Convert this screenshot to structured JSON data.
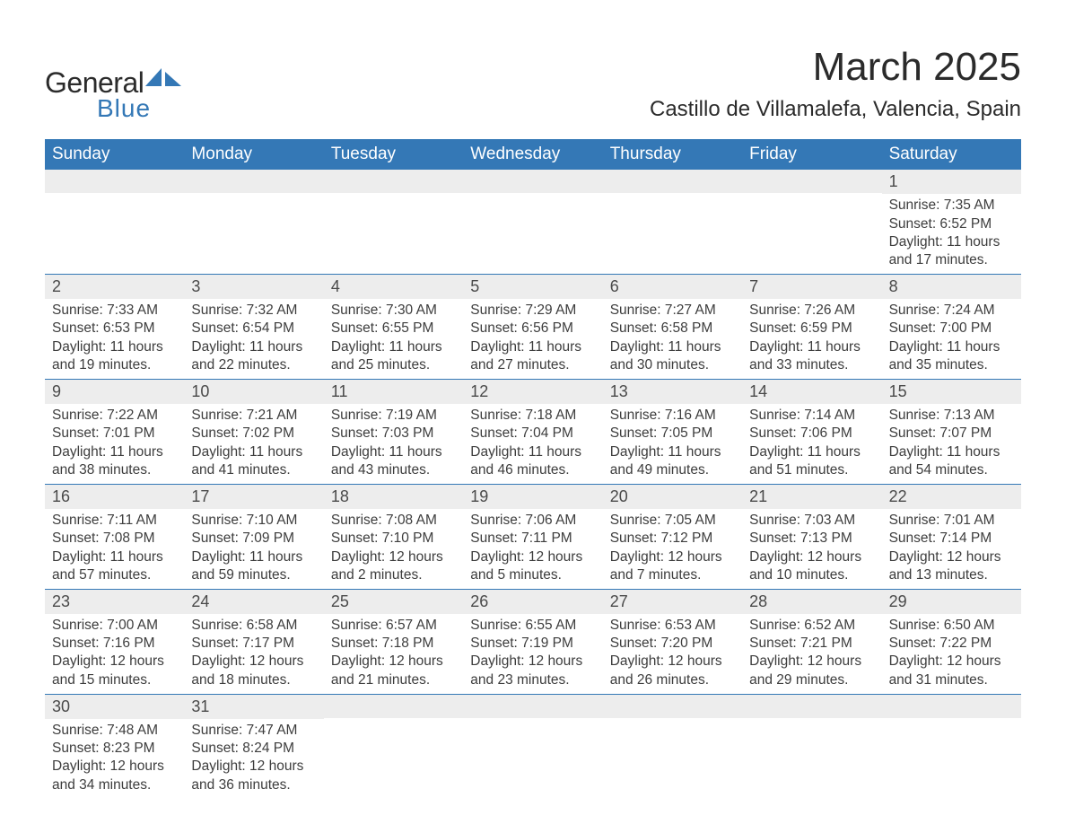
{
  "logo": {
    "text_general": "General",
    "text_blue": "Blue",
    "accent_color": "#3478b6"
  },
  "title": "March 2025",
  "location": "Castillo de Villamalefa, Valencia, Spain",
  "colors": {
    "header_bg": "#3478b6",
    "header_text": "#ffffff",
    "daynum_bg": "#ededed",
    "row_border": "#3478b6",
    "body_text": "#3d3d3d",
    "page_bg": "#ffffff"
  },
  "fonts": {
    "title_size_pt": 33,
    "location_size_pt": 18,
    "weekday_size_pt": 14,
    "daynum_size_pt": 13,
    "body_size_pt": 12
  },
  "weekdays": [
    "Sunday",
    "Monday",
    "Tuesday",
    "Wednesday",
    "Thursday",
    "Friday",
    "Saturday"
  ],
  "weeks": [
    [
      null,
      null,
      null,
      null,
      null,
      null,
      {
        "n": "1",
        "sunrise": "Sunrise: 7:35 AM",
        "sunset": "Sunset: 6:52 PM",
        "daylight": "Daylight: 11 hours and 17 minutes."
      }
    ],
    [
      {
        "n": "2",
        "sunrise": "Sunrise: 7:33 AM",
        "sunset": "Sunset: 6:53 PM",
        "daylight": "Daylight: 11 hours and 19 minutes."
      },
      {
        "n": "3",
        "sunrise": "Sunrise: 7:32 AM",
        "sunset": "Sunset: 6:54 PM",
        "daylight": "Daylight: 11 hours and 22 minutes."
      },
      {
        "n": "4",
        "sunrise": "Sunrise: 7:30 AM",
        "sunset": "Sunset: 6:55 PM",
        "daylight": "Daylight: 11 hours and 25 minutes."
      },
      {
        "n": "5",
        "sunrise": "Sunrise: 7:29 AM",
        "sunset": "Sunset: 6:56 PM",
        "daylight": "Daylight: 11 hours and 27 minutes."
      },
      {
        "n": "6",
        "sunrise": "Sunrise: 7:27 AM",
        "sunset": "Sunset: 6:58 PM",
        "daylight": "Daylight: 11 hours and 30 minutes."
      },
      {
        "n": "7",
        "sunrise": "Sunrise: 7:26 AM",
        "sunset": "Sunset: 6:59 PM",
        "daylight": "Daylight: 11 hours and 33 minutes."
      },
      {
        "n": "8",
        "sunrise": "Sunrise: 7:24 AM",
        "sunset": "Sunset: 7:00 PM",
        "daylight": "Daylight: 11 hours and 35 minutes."
      }
    ],
    [
      {
        "n": "9",
        "sunrise": "Sunrise: 7:22 AM",
        "sunset": "Sunset: 7:01 PM",
        "daylight": "Daylight: 11 hours and 38 minutes."
      },
      {
        "n": "10",
        "sunrise": "Sunrise: 7:21 AM",
        "sunset": "Sunset: 7:02 PM",
        "daylight": "Daylight: 11 hours and 41 minutes."
      },
      {
        "n": "11",
        "sunrise": "Sunrise: 7:19 AM",
        "sunset": "Sunset: 7:03 PM",
        "daylight": "Daylight: 11 hours and 43 minutes."
      },
      {
        "n": "12",
        "sunrise": "Sunrise: 7:18 AM",
        "sunset": "Sunset: 7:04 PM",
        "daylight": "Daylight: 11 hours and 46 minutes."
      },
      {
        "n": "13",
        "sunrise": "Sunrise: 7:16 AM",
        "sunset": "Sunset: 7:05 PM",
        "daylight": "Daylight: 11 hours and 49 minutes."
      },
      {
        "n": "14",
        "sunrise": "Sunrise: 7:14 AM",
        "sunset": "Sunset: 7:06 PM",
        "daylight": "Daylight: 11 hours and 51 minutes."
      },
      {
        "n": "15",
        "sunrise": "Sunrise: 7:13 AM",
        "sunset": "Sunset: 7:07 PM",
        "daylight": "Daylight: 11 hours and 54 minutes."
      }
    ],
    [
      {
        "n": "16",
        "sunrise": "Sunrise: 7:11 AM",
        "sunset": "Sunset: 7:08 PM",
        "daylight": "Daylight: 11 hours and 57 minutes."
      },
      {
        "n": "17",
        "sunrise": "Sunrise: 7:10 AM",
        "sunset": "Sunset: 7:09 PM",
        "daylight": "Daylight: 11 hours and 59 minutes."
      },
      {
        "n": "18",
        "sunrise": "Sunrise: 7:08 AM",
        "sunset": "Sunset: 7:10 PM",
        "daylight": "Daylight: 12 hours and 2 minutes."
      },
      {
        "n": "19",
        "sunrise": "Sunrise: 7:06 AM",
        "sunset": "Sunset: 7:11 PM",
        "daylight": "Daylight: 12 hours and 5 minutes."
      },
      {
        "n": "20",
        "sunrise": "Sunrise: 7:05 AM",
        "sunset": "Sunset: 7:12 PM",
        "daylight": "Daylight: 12 hours and 7 minutes."
      },
      {
        "n": "21",
        "sunrise": "Sunrise: 7:03 AM",
        "sunset": "Sunset: 7:13 PM",
        "daylight": "Daylight: 12 hours and 10 minutes."
      },
      {
        "n": "22",
        "sunrise": "Sunrise: 7:01 AM",
        "sunset": "Sunset: 7:14 PM",
        "daylight": "Daylight: 12 hours and 13 minutes."
      }
    ],
    [
      {
        "n": "23",
        "sunrise": "Sunrise: 7:00 AM",
        "sunset": "Sunset: 7:16 PM",
        "daylight": "Daylight: 12 hours and 15 minutes."
      },
      {
        "n": "24",
        "sunrise": "Sunrise: 6:58 AM",
        "sunset": "Sunset: 7:17 PM",
        "daylight": "Daylight: 12 hours and 18 minutes."
      },
      {
        "n": "25",
        "sunrise": "Sunrise: 6:57 AM",
        "sunset": "Sunset: 7:18 PM",
        "daylight": "Daylight: 12 hours and 21 minutes."
      },
      {
        "n": "26",
        "sunrise": "Sunrise: 6:55 AM",
        "sunset": "Sunset: 7:19 PM",
        "daylight": "Daylight: 12 hours and 23 minutes."
      },
      {
        "n": "27",
        "sunrise": "Sunrise: 6:53 AM",
        "sunset": "Sunset: 7:20 PM",
        "daylight": "Daylight: 12 hours and 26 minutes."
      },
      {
        "n": "28",
        "sunrise": "Sunrise: 6:52 AM",
        "sunset": "Sunset: 7:21 PM",
        "daylight": "Daylight: 12 hours and 29 minutes."
      },
      {
        "n": "29",
        "sunrise": "Sunrise: 6:50 AM",
        "sunset": "Sunset: 7:22 PM",
        "daylight": "Daylight: 12 hours and 31 minutes."
      }
    ],
    [
      {
        "n": "30",
        "sunrise": "Sunrise: 7:48 AM",
        "sunset": "Sunset: 8:23 PM",
        "daylight": "Daylight: 12 hours and 34 minutes."
      },
      {
        "n": "31",
        "sunrise": "Sunrise: 7:47 AM",
        "sunset": "Sunset: 8:24 PM",
        "daylight": "Daylight: 12 hours and 36 minutes."
      },
      null,
      null,
      null,
      null,
      null
    ]
  ]
}
